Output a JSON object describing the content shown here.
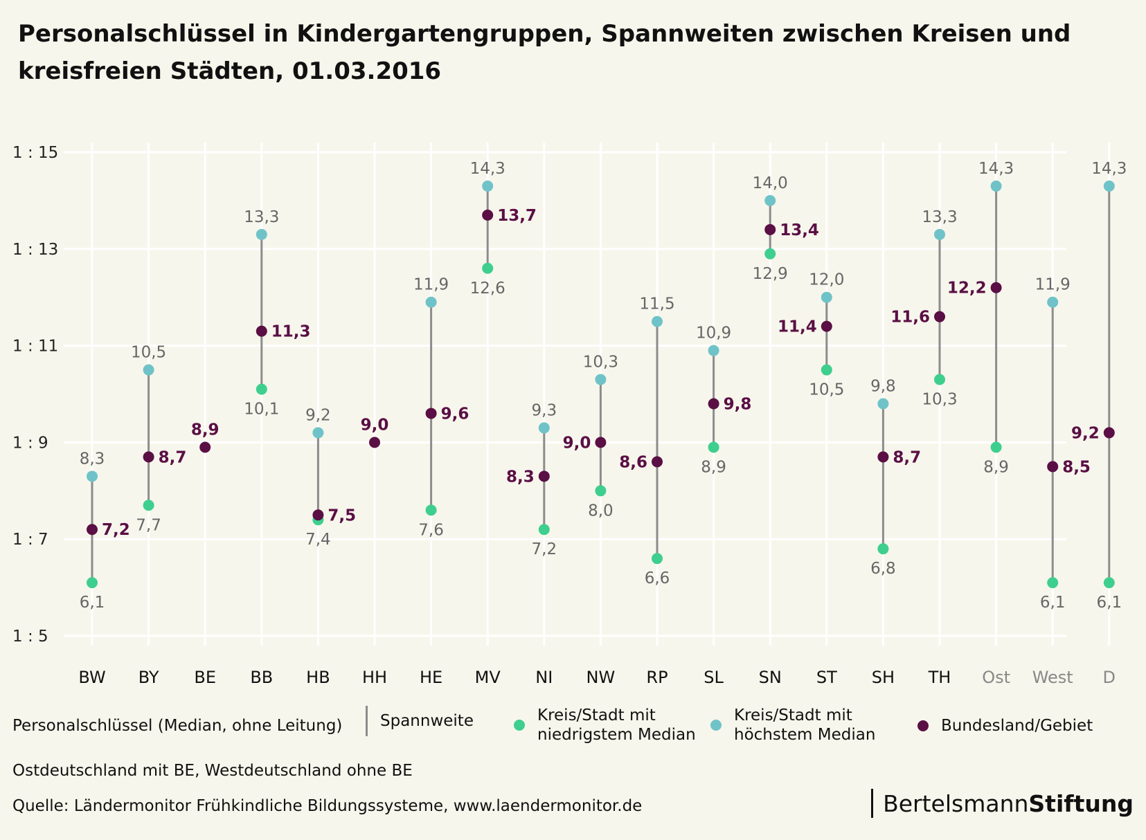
{
  "title": "Personalschlüssel in Kindergartengruppen, Spannweiten zwischen Kreisen und kreisfreien Städten, 01.03.2016",
  "legend": {
    "heading": "Personalschlüssel (Median, ohne Leitung)",
    "range": "Spannweite",
    "low": "Kreis/Stadt mit niedrigstem Median",
    "high": "Kreis/Stadt mit höchstem Median",
    "state": "Bundesland/Gebiet"
  },
  "note": "Ostdeutschland mit BE, Westdeutschland ohne BE",
  "source": "Quelle: Ländermonitor Frühkindliche Bildungssysteme, www.laendermonitor.de",
  "brand": {
    "part1": "Bertelsmann",
    "part2": "Stiftung"
  },
  "colors": {
    "background": "#f7f6ec",
    "low": "#3ecf8e",
    "high": "#6fc3c8",
    "state": "#5a0f45",
    "range": "#8c8c8c",
    "label": "#666666",
    "aggregate_tick": "#888888"
  },
  "chart_data": {
    "type": "dot-range",
    "categories": [
      "BW",
      "BY",
      "BE",
      "BB",
      "HB",
      "HH",
      "HE",
      "MV",
      "NI",
      "NW",
      "RP",
      "SL",
      "SN",
      "ST",
      "SH",
      "TH",
      "Ost",
      "West",
      "D"
    ],
    "low": [
      6.1,
      7.7,
      null,
      10.1,
      7.4,
      null,
      7.6,
      12.6,
      7.2,
      8.0,
      6.6,
      8.9,
      12.9,
      10.5,
      6.8,
      10.3,
      8.9,
      6.1,
      6.1
    ],
    "high": [
      8.3,
      10.5,
      null,
      13.3,
      9.2,
      null,
      11.9,
      14.3,
      9.3,
      10.3,
      11.5,
      10.9,
      14.0,
      12.0,
      9.8,
      13.3,
      14.3,
      11.9,
      14.3
    ],
    "state": [
      7.2,
      8.7,
      8.9,
      11.3,
      7.5,
      9.0,
      9.6,
      13.7,
      8.3,
      9.0,
      8.6,
      9.8,
      13.4,
      11.4,
      8.7,
      11.6,
      12.2,
      8.5,
      9.2
    ],
    "low_labels": [
      "6,1",
      "7,7",
      "",
      "10,1",
      "7,4",
      "",
      "7,6",
      "12,6",
      "7,2",
      "8,0",
      "6,6",
      "8,9",
      "12,9",
      "10,5",
      "6,8",
      "10,3",
      "8,9",
      "6,1",
      "6,1"
    ],
    "high_labels": [
      "8,3",
      "10,5",
      "",
      "13,3",
      "9,2",
      "",
      "11,9",
      "14,3",
      "9,3",
      "10,3",
      "11,5",
      "10,9",
      "14,0",
      "12,0",
      "9,8",
      "13,3",
      "14,3",
      "11,9",
      "14,3"
    ],
    "state_labels": [
      "7,2",
      "8,7",
      "8,9",
      "11,3",
      "7,5",
      "9,0",
      "9,6",
      "13,7",
      "8,3",
      "9,0",
      "8,6",
      "9,8",
      "13,4",
      "11,4",
      "8,7",
      "11,6",
      "12,2",
      "8,5",
      "9,2"
    ],
    "state_label_side": [
      "right",
      "right",
      "top",
      "right",
      "right",
      "top",
      "right",
      "right",
      "left",
      "left",
      "left",
      "right",
      "right",
      "left",
      "right",
      "left",
      "left",
      "right",
      "left"
    ],
    "aggregate_categories": [
      "Ost",
      "West",
      "D"
    ],
    "yticks": [
      5,
      7,
      9,
      11,
      13,
      15
    ],
    "ytick_labels": [
      "1 : 5",
      "1 : 7",
      "1 : 9",
      "1 : 11",
      "1 : 13",
      "1 : 15"
    ],
    "ylim": [
      5,
      15
    ],
    "grid": true
  }
}
